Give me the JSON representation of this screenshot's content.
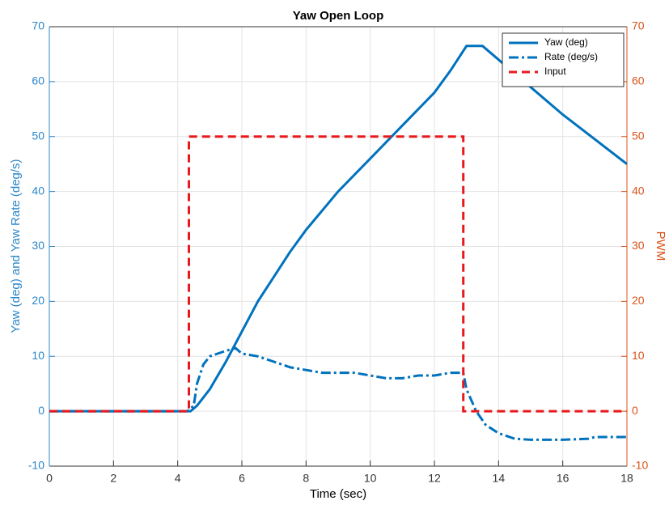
{
  "chart_data": {
    "type": "line",
    "title": "Yaw Open Loop",
    "x_label": "Time (sec)",
    "y_label": "Yaw (deg) and Yaw Rate (deg/s)",
    "y2_label": "PWM",
    "xlim": [
      0,
      18
    ],
    "xticks": [
      0,
      2,
      4,
      6,
      8,
      10,
      12,
      14,
      16,
      18
    ],
    "ylim": [
      -10,
      70
    ],
    "yticks": [
      -10,
      0,
      10,
      20,
      30,
      40,
      50,
      60,
      70
    ],
    "y2lim": [
      -10,
      70
    ],
    "y2ticks": [
      -10,
      0,
      10,
      20,
      30,
      40,
      50,
      60,
      70
    ],
    "grid": true,
    "legend": "top-right",
    "y_color": "#2a86c8",
    "y2_color": "#d95319",
    "series": [
      {
        "name": "Yaw (deg)",
        "color": "#0072bd",
        "style": "solid",
        "x": [
          0,
          4.4,
          4.6,
          5,
          5.5,
          6,
          6.5,
          7,
          7.5,
          8,
          9,
          10,
          11,
          12,
          12.5,
          13,
          13.5,
          14,
          15,
          16,
          17,
          18
        ],
        "values": [
          0,
          0,
          1,
          4,
          9,
          14.5,
          20,
          24.5,
          29,
          33,
          40,
          46,
          52,
          58,
          62,
          66.5,
          66.5,
          64,
          59,
          54,
          49.5,
          45
        ]
      },
      {
        "name": "Rate (deg/s)",
        "color": "#0072bd",
        "style": "dashdot",
        "x": [
          0,
          4.3,
          4.5,
          4.6,
          4.8,
          5,
          5.5,
          5.8,
          6,
          6.5,
          7,
          7.5,
          8,
          8.5,
          9,
          9.5,
          10,
          10.5,
          11,
          11.5,
          12,
          12.5,
          12.9,
          13,
          13.3,
          13.6,
          14,
          14.5,
          15,
          16,
          16.8,
          17,
          18
        ],
        "values": [
          0,
          0,
          1,
          5,
          8.5,
          10,
          11,
          11.5,
          10.5,
          10,
          9,
          8,
          7.5,
          7,
          7,
          7,
          6.5,
          6,
          6,
          6.5,
          6.5,
          7,
          7,
          4,
          0,
          -2.5,
          -4,
          -5,
          -5.2,
          -5.2,
          -5,
          -4.7,
          -4.7
        ]
      },
      {
        "name": "Input",
        "color": "#e8191c",
        "style": "dashed",
        "axis": "y2",
        "x": [
          0,
          4.35,
          4.35,
          12.9,
          12.9,
          18
        ],
        "values": [
          0,
          0,
          50,
          50,
          0,
          0
        ]
      }
    ]
  }
}
